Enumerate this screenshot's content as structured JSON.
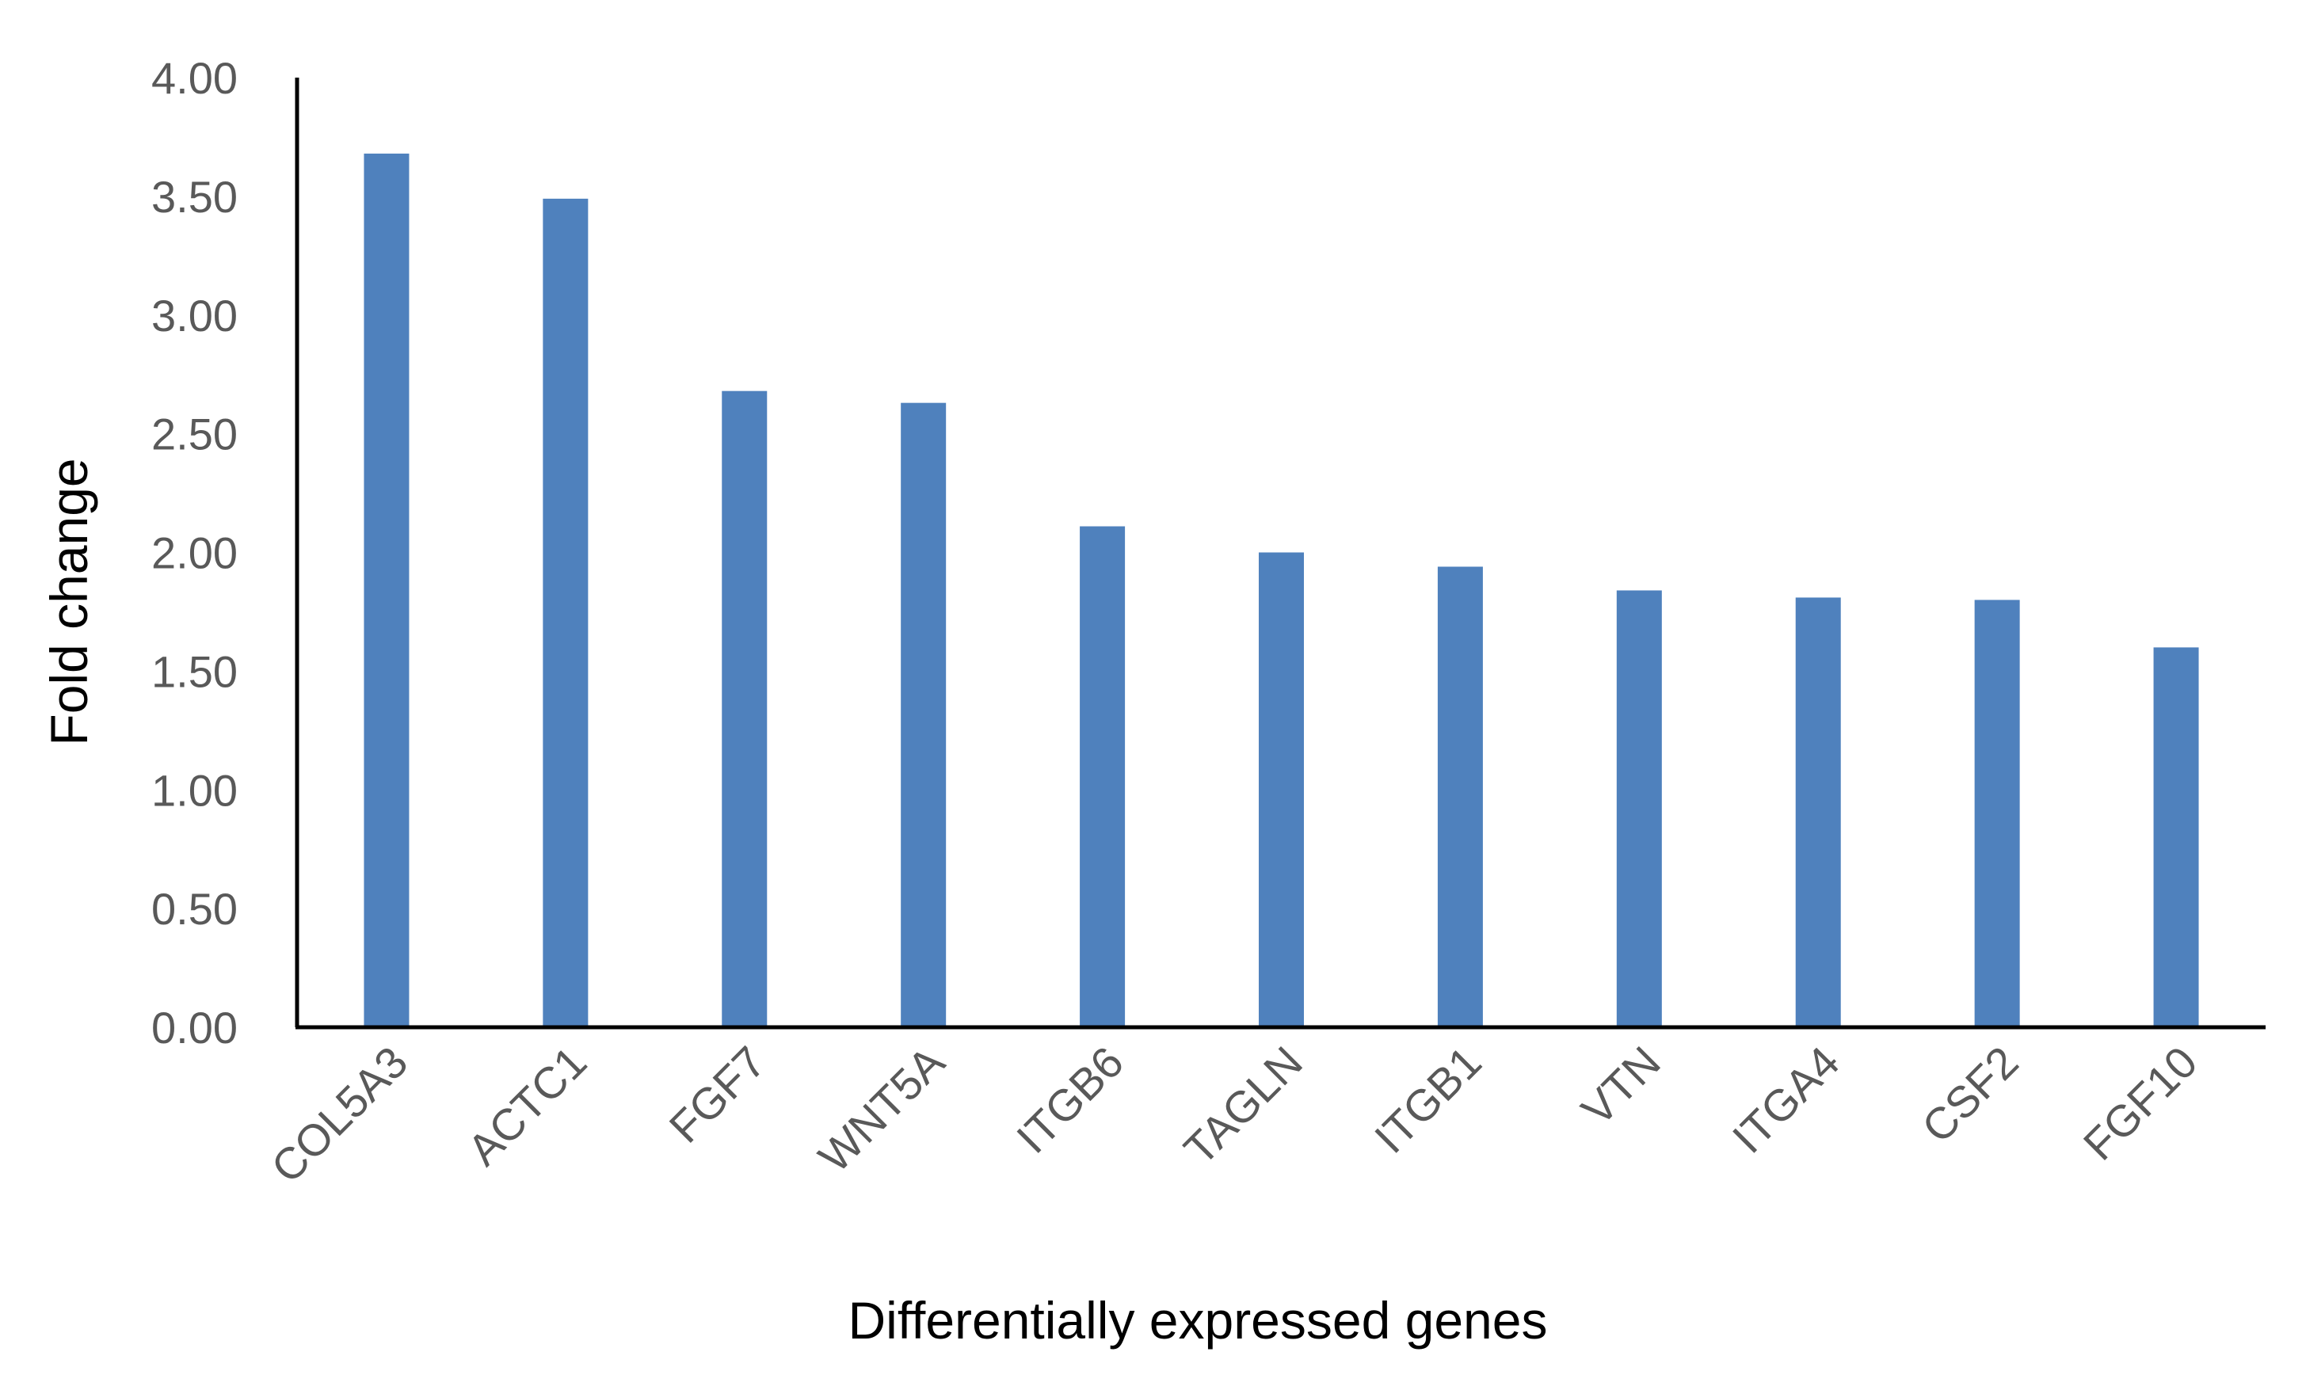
{
  "chart_data": {
    "type": "bar",
    "title": "",
    "xlabel": "Differentially expressed genes",
    "ylabel": "Fold change",
    "categories": [
      "COL5A3",
      "ACTC1",
      "FGF7",
      "WNT5A",
      "ITGB6",
      "TAGLN",
      "ITGB1",
      "VTN",
      "ITGA4",
      "CSF2",
      "FGF10"
    ],
    "series": [
      {
        "values": [
          3.68,
          3.49,
          2.68,
          2.63,
          2.11,
          2.0,
          1.94,
          1.84,
          1.81,
          1.8,
          1.6
        ]
      }
    ],
    "ylim": [
      0,
      4
    ],
    "yticks": [
      "0.00",
      "0.50",
      "1.00",
      "1.50",
      "2.00",
      "2.50",
      "3.00",
      "3.50",
      "4.00"
    ],
    "grid": false,
    "legend": "none",
    "bar_color": "#4f81bd",
    "axis_color": "#000000",
    "tick_label_color": "#595959"
  }
}
